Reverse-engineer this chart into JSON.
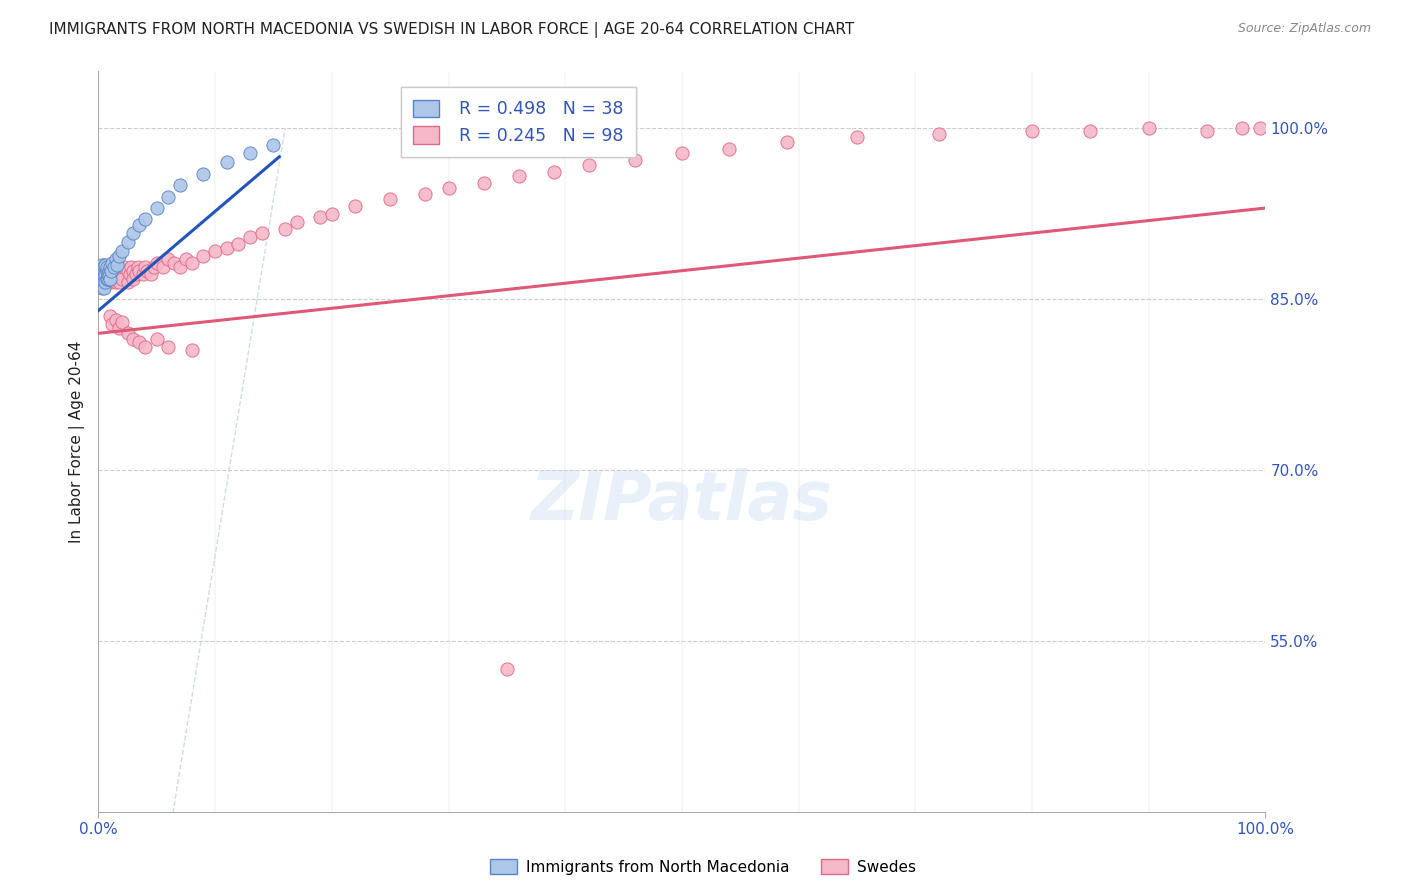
{
  "title": "IMMIGRANTS FROM NORTH MACEDONIA VS SWEDISH IN LABOR FORCE | AGE 20-64 CORRELATION CHART",
  "source": "Source: ZipAtlas.com",
  "ylabel": "In Labor Force | Age 20-64",
  "xmin": 0.0,
  "xmax": 1.0,
  "ymin": 0.4,
  "ymax": 1.05,
  "ytick_vals": [
    0.55,
    0.7,
    0.85,
    1.0
  ],
  "ytick_labels": [
    "55.0%",
    "70.0%",
    "85.0%",
    "100.0%"
  ],
  "xtick_vals": [
    0.0,
    1.0
  ],
  "xtick_labels": [
    "0.0%",
    "100.0%"
  ],
  "legend_r1": "R = 0.498",
  "legend_n1": "N = 38",
  "legend_r2": "R = 0.245",
  "legend_n2": "N = 98",
  "group1_fill": "#aec6e8",
  "group1_edge": "#5585c8",
  "group2_fill": "#f5b8c8",
  "group2_edge": "#e06888",
  "trend1_color": "#2255bb",
  "trend2_color": "#e05878",
  "diag_color": "#c0d4e8",
  "title_color": "#222222",
  "source_color": "#888888",
  "ylabel_color": "#222222",
  "tick_color": "#3355bb",
  "bg_color": "#ffffff",
  "grid_color": "#cccccc",
  "group1_x": [
    0.002,
    0.003,
    0.003,
    0.004,
    0.004,
    0.005,
    0.005,
    0.005,
    0.006,
    0.006,
    0.006,
    0.007,
    0.007,
    0.007,
    0.008,
    0.008,
    0.009,
    0.009,
    0.01,
    0.01,
    0.011,
    0.012,
    0.013,
    0.015,
    0.016,
    0.018,
    0.02,
    0.025,
    0.03,
    0.035,
    0.04,
    0.05,
    0.06,
    0.07,
    0.09,
    0.11,
    0.13,
    0.15
  ],
  "group1_y": [
    0.87,
    0.86,
    0.88,
    0.865,
    0.875,
    0.878,
    0.87,
    0.86,
    0.872,
    0.865,
    0.88,
    0.875,
    0.868,
    0.878,
    0.872,
    0.868,
    0.875,
    0.87,
    0.878,
    0.868,
    0.875,
    0.882,
    0.878,
    0.885,
    0.88,
    0.888,
    0.892,
    0.9,
    0.908,
    0.915,
    0.92,
    0.93,
    0.94,
    0.95,
    0.96,
    0.97,
    0.978,
    0.985
  ],
  "group2_x": [
    0.003,
    0.004,
    0.004,
    0.005,
    0.005,
    0.005,
    0.006,
    0.006,
    0.007,
    0.007,
    0.007,
    0.008,
    0.008,
    0.008,
    0.009,
    0.009,
    0.01,
    0.01,
    0.01,
    0.011,
    0.011,
    0.012,
    0.012,
    0.013,
    0.014,
    0.015,
    0.015,
    0.016,
    0.017,
    0.018,
    0.018,
    0.02,
    0.02,
    0.022,
    0.025,
    0.025,
    0.027,
    0.028,
    0.03,
    0.03,
    0.032,
    0.034,
    0.035,
    0.038,
    0.04,
    0.042,
    0.045,
    0.048,
    0.05,
    0.055,
    0.06,
    0.065,
    0.07,
    0.075,
    0.08,
    0.09,
    0.1,
    0.11,
    0.12,
    0.13,
    0.14,
    0.16,
    0.17,
    0.19,
    0.2,
    0.22,
    0.25,
    0.28,
    0.3,
    0.33,
    0.36,
    0.39,
    0.42,
    0.46,
    0.5,
    0.54,
    0.59,
    0.65,
    0.72,
    0.8,
    0.85,
    0.9,
    0.95,
    0.98,
    0.995,
    0.01,
    0.012,
    0.015,
    0.018,
    0.02,
    0.025,
    0.03,
    0.035,
    0.04,
    0.05,
    0.06,
    0.08,
    0.35
  ],
  "group2_y": [
    0.87,
    0.865,
    0.878,
    0.872,
    0.868,
    0.88,
    0.875,
    0.865,
    0.872,
    0.868,
    0.878,
    0.872,
    0.868,
    0.875,
    0.87,
    0.865,
    0.875,
    0.868,
    0.878,
    0.872,
    0.865,
    0.878,
    0.868,
    0.875,
    0.872,
    0.878,
    0.865,
    0.872,
    0.878,
    0.865,
    0.875,
    0.872,
    0.868,
    0.878,
    0.875,
    0.865,
    0.872,
    0.878,
    0.875,
    0.868,
    0.872,
    0.878,
    0.875,
    0.872,
    0.878,
    0.875,
    0.872,
    0.878,
    0.882,
    0.878,
    0.885,
    0.882,
    0.878,
    0.885,
    0.882,
    0.888,
    0.892,
    0.895,
    0.898,
    0.905,
    0.908,
    0.912,
    0.918,
    0.922,
    0.925,
    0.932,
    0.938,
    0.942,
    0.948,
    0.952,
    0.958,
    0.962,
    0.968,
    0.972,
    0.978,
    0.982,
    0.988,
    0.992,
    0.995,
    0.998,
    0.998,
    1.0,
    0.998,
    1.0,
    1.0,
    0.835,
    0.828,
    0.832,
    0.825,
    0.83,
    0.82,
    0.815,
    0.812,
    0.808,
    0.815,
    0.808,
    0.805,
    0.525
  ],
  "trend1_x": [
    0.0,
    0.155
  ],
  "trend1_y_start": 0.84,
  "trend1_y_end": 0.975,
  "trend2_x": [
    0.0,
    1.0
  ],
  "trend2_y_start": 0.82,
  "trend2_y_end": 0.93
}
